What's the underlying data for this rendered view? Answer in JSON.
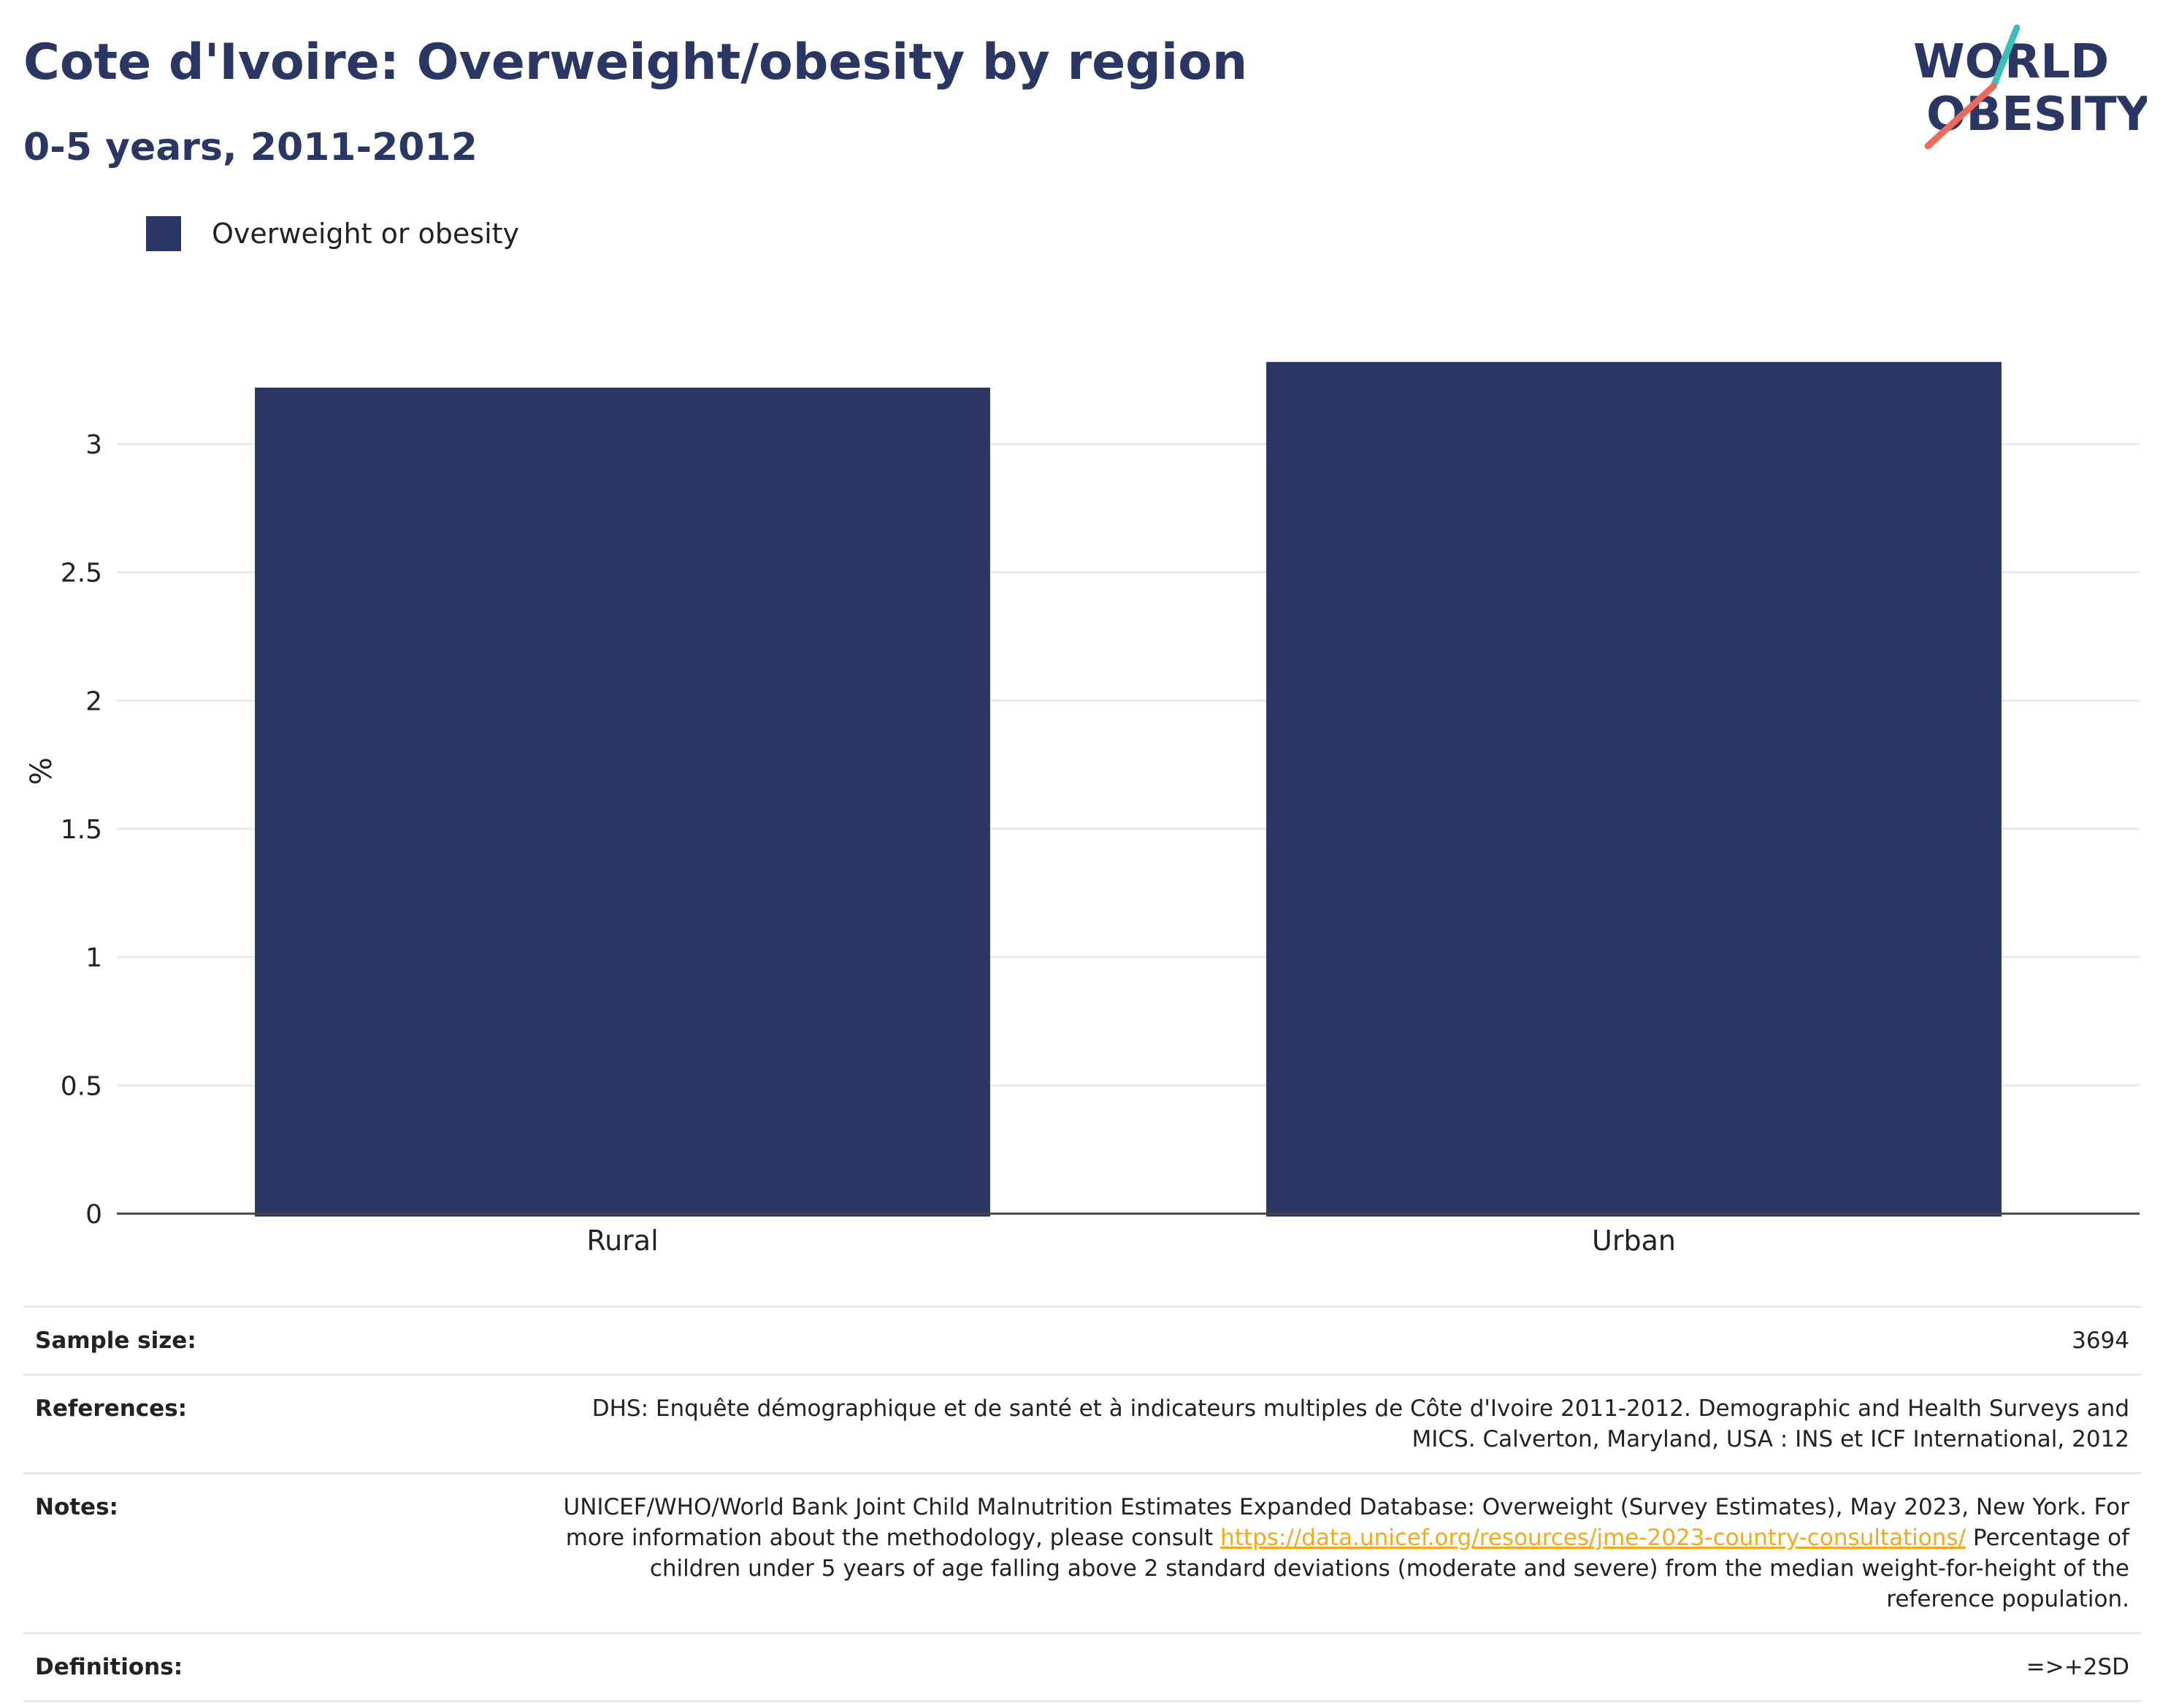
{
  "header": {
    "title": "Cote d'Ivoire: Overweight/obesity by region",
    "subtitle": "0-5 years, 2011-2012"
  },
  "logo": {
    "line1": "WORLD",
    "line2": "OBESITY",
    "accent_teal": "#3dbfb8",
    "accent_coral": "#ec6a5c"
  },
  "colors": {
    "bar": "#2a3663",
    "grid": "#e8e8ee",
    "axis": "#444444"
  },
  "chart_data": {
    "type": "bar",
    "categories": [
      "Rural",
      "Urban"
    ],
    "series": [
      {
        "name": "Overweight or obesity",
        "values": [
          3.22,
          3.32
        ]
      }
    ],
    "ylabel": "%",
    "xlabel": "",
    "ylim": [
      0,
      3.45
    ],
    "yticks": [
      0,
      0.5,
      1,
      1.5,
      2,
      2.5,
      3
    ],
    "ytick_labels": [
      "0",
      "0.5",
      "1",
      "1.5",
      "2",
      "2.5",
      "3"
    ],
    "grid": true,
    "legend_position": "top-left"
  },
  "meta": {
    "sample_size": {
      "label": "Sample size:",
      "value": "3694"
    },
    "references": {
      "label": "References:",
      "value": "DHS: Enquête démographique et de santé et à indicateurs multiples de Côte d'Ivoire 2011-2012. Demographic and Health Surveys and MICS. Calverton, Maryland, USA : INS et ICF International, 2012"
    },
    "notes": {
      "label": "Notes:",
      "text_before": "UNICEF/WHO/World Bank Joint Child Malnutrition Estimates Expanded Database: Overweight (Survey Estimates), May 2023, New York. For more information about the methodology, please consult ",
      "link": "https://data.unicef.org/resources/jme-2023-country-consultations/",
      "text_after": " Percentage of children under 5 years of age falling above 2 standard deviations (moderate and severe) from the median weight-for-height of the reference population."
    },
    "definitions": {
      "label": "Definitions:",
      "value": "=>+2SD"
    }
  }
}
